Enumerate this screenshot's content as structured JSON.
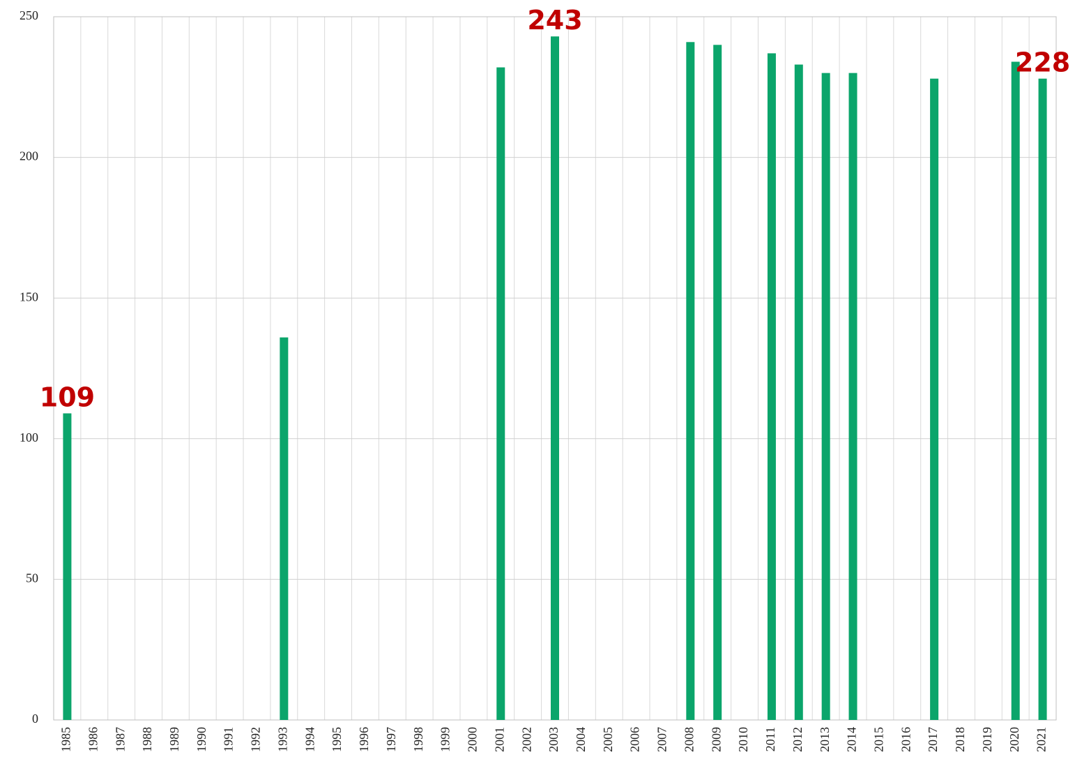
{
  "chart_data": {
    "type": "bar",
    "categories": [
      "1985",
      "1986",
      "1987",
      "1988",
      "1989",
      "1990",
      "1991",
      "1992",
      "1993",
      "1994",
      "1995",
      "1996",
      "1997",
      "1998",
      "1999",
      "2000",
      "2001",
      "2002",
      "2003",
      "2004",
      "2005",
      "2006",
      "2007",
      "2008",
      "2009",
      "2010",
      "2011",
      "2012",
      "2013",
      "2014",
      "2015",
      "2016",
      "2017",
      "2018",
      "2019",
      "2020",
      "2021"
    ],
    "values": [
      109,
      null,
      null,
      null,
      null,
      null,
      null,
      null,
      136,
      null,
      null,
      null,
      null,
      null,
      null,
      null,
      232,
      null,
      243,
      null,
      null,
      null,
      null,
      241,
      240,
      null,
      237,
      233,
      230,
      230,
      null,
      null,
      228,
      null,
      null,
      234,
      228
    ],
    "value_labels": [
      "109",
      null,
      null,
      null,
      null,
      null,
      null,
      null,
      null,
      null,
      null,
      null,
      null,
      null,
      null,
      null,
      null,
      null,
      "243",
      null,
      null,
      null,
      null,
      null,
      null,
      null,
      null,
      null,
      null,
      null,
      null,
      null,
      null,
      null,
      null,
      null,
      "228"
    ],
    "color": "#0ba56b",
    "ylim": [
      0,
      250
    ],
    "yticks": [
      0,
      50,
      100,
      150,
      200,
      250
    ],
    "grid": true
  }
}
